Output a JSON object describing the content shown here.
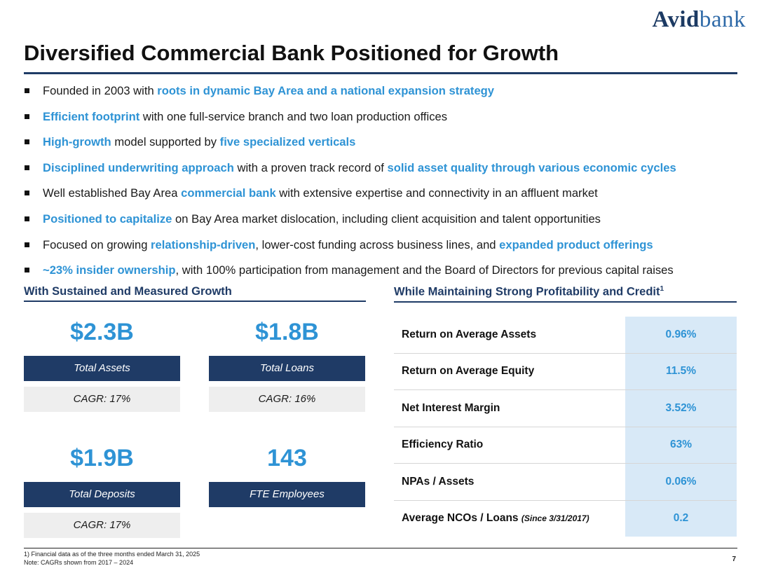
{
  "logo": {
    "part1": "Avid",
    "part2": "bank"
  },
  "title": "Diversified Commercial Bank Positioned for Growth",
  "bullets": [
    [
      {
        "t": "Founded in 2003 with "
      },
      {
        "t": "roots in dynamic Bay Area and a national expansion strategy",
        "h": true
      }
    ],
    [
      {
        "t": "Efficient footprint",
        "h": true
      },
      {
        "t": " with one full-service branch and two loan production offices"
      }
    ],
    [
      {
        "t": "High-growth",
        "h": true
      },
      {
        "t": " model supported by "
      },
      {
        "t": "five specialized verticals",
        "h": true
      }
    ],
    [
      {
        "t": "Disciplined underwriting approach",
        "h": true
      },
      {
        "t": " with a proven track record of "
      },
      {
        "t": "solid asset quality through various economic cycles",
        "h": true
      }
    ],
    [
      {
        "t": "Well established Bay Area "
      },
      {
        "t": "commercial bank",
        "h": true
      },
      {
        "t": " with extensive expertise and connectivity in an affluent market"
      }
    ],
    [
      {
        "t": "Positioned to capitalize",
        "h": true
      },
      {
        "t": " on Bay Area market dislocation, including client acquisition and talent opportunities"
      }
    ],
    [
      {
        "t": "Focused on growing "
      },
      {
        "t": "relationship-driven",
        "h": true
      },
      {
        "t": ", lower-cost funding across business lines, and "
      },
      {
        "t": "expanded product offerings",
        "h": true
      }
    ],
    [
      {
        "t": "~23% insider ownership",
        "h": true
      },
      {
        "t": ", with 100% participation from management and the Board of Directors for previous capital raises"
      }
    ]
  ],
  "left_section": {
    "heading": "With Sustained and Measured Growth",
    "stats": [
      {
        "value": "$2.3B",
        "label": "Total Assets",
        "cagr": "CAGR: 17%"
      },
      {
        "value": "$1.8B",
        "label": "Total Loans",
        "cagr": "CAGR: 16%"
      },
      {
        "value": "$1.9B",
        "label": "Total Deposits",
        "cagr": "CAGR: 17%"
      },
      {
        "value": "143",
        "label": "FTE Employees"
      }
    ]
  },
  "right_section": {
    "heading": "While Maintaining Strong Profitability and Credit",
    "heading_sup": "1",
    "metrics": [
      {
        "label": "Return on Average Assets",
        "value": "0.96%"
      },
      {
        "label": "Return on Average Equity",
        "value": "11.5%"
      },
      {
        "label": "Net Interest Margin",
        "value": "3.52%"
      },
      {
        "label": "Efficiency Ratio",
        "value": "63%"
      },
      {
        "label": "NPAs / Assets",
        "value": "0.06%"
      },
      {
        "label": "Average NCOs / Loans",
        "label_note": "(Since 3/31/2017)",
        "value": "0.2"
      }
    ]
  },
  "footnotes": {
    "note1": "1)   Financial data as of the three months ended March 31, 2025",
    "note2": "Note: CAGRs shown from 2017 – 2024"
  },
  "page_number": "7",
  "colors": {
    "navy": "#1f3b66",
    "accent_blue": "#2e93d5",
    "value_bg": "#d8e9f7",
    "cagr_bg": "#eeeeee"
  }
}
